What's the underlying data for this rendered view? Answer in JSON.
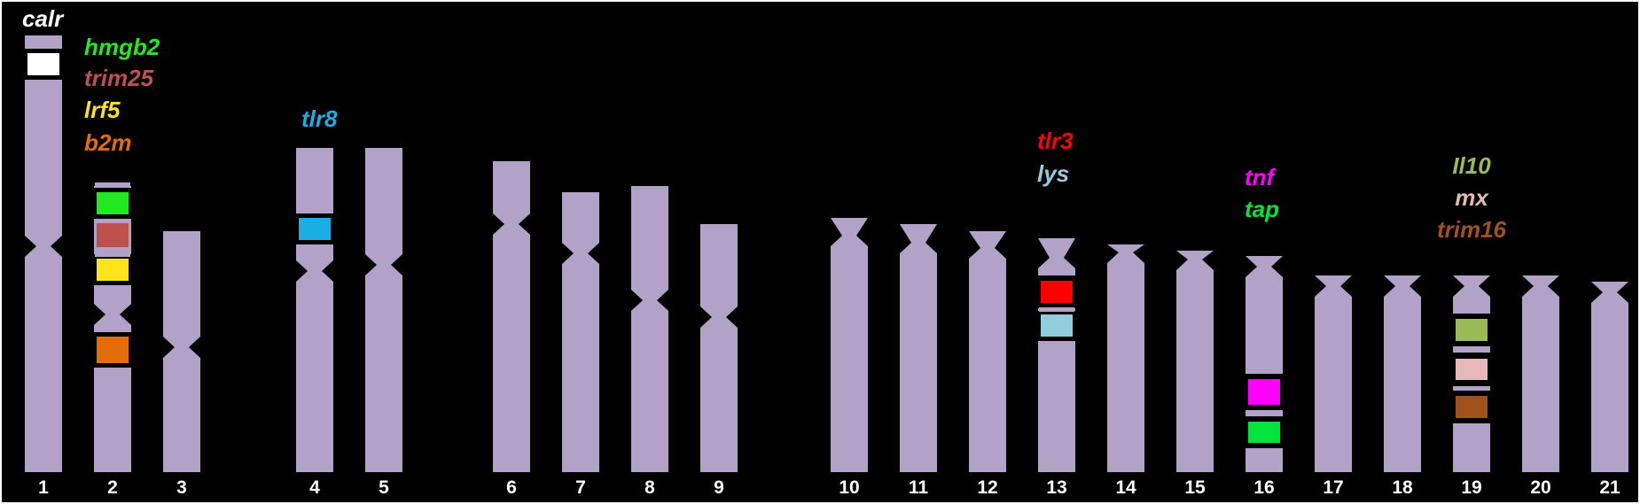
{
  "chromosome_color": "#b3a2c8",
  "background_color": "#000000",
  "chromosomes": [
    {
      "label": "1",
      "genes": [
        {
          "name": "calr",
          "color": "#ffffff"
        }
      ]
    },
    {
      "label": "2",
      "genes": [
        {
          "name": "hmgb2",
          "color": "#22e822"
        },
        {
          "name": "trim25",
          "color": "#c0504d"
        },
        {
          "name": "lrf5",
          "color": "#ffe419"
        },
        {
          "name": "b2m",
          "color": "#e46c0a"
        }
      ]
    },
    {
      "label": "3",
      "genes": []
    },
    {
      "label": "4",
      "genes": [
        {
          "name": "tlr8",
          "color": "#1aaee5"
        }
      ]
    },
    {
      "label": "5",
      "genes": []
    },
    {
      "label": "6",
      "genes": []
    },
    {
      "label": "7",
      "genes": []
    },
    {
      "label": "8",
      "genes": []
    },
    {
      "label": "9",
      "genes": []
    },
    {
      "label": "10",
      "genes": []
    },
    {
      "label": "11",
      "genes": []
    },
    {
      "label": "12",
      "genes": []
    },
    {
      "label": "13",
      "genes": [
        {
          "name": "tlr3",
          "color": "#ff0000"
        },
        {
          "name": "lys",
          "color": "#92cddc"
        }
      ]
    },
    {
      "label": "14",
      "genes": []
    },
    {
      "label": "15",
      "genes": []
    },
    {
      "label": "16",
      "genes": [
        {
          "name": "tnf",
          "color": "#ff00ff"
        },
        {
          "name": "tap",
          "color": "#00e43b"
        }
      ]
    },
    {
      "label": "17",
      "genes": []
    },
    {
      "label": "18",
      "genes": []
    },
    {
      "label": "19",
      "genes": [
        {
          "name": "Il10",
          "color": "#9bbb59"
        },
        {
          "name": "mx",
          "color": "#e6b9b8"
        },
        {
          "name": "trim16",
          "color": "#a0521e"
        }
      ]
    },
    {
      "label": "20",
      "genes": []
    },
    {
      "label": "21",
      "genes": []
    }
  ]
}
